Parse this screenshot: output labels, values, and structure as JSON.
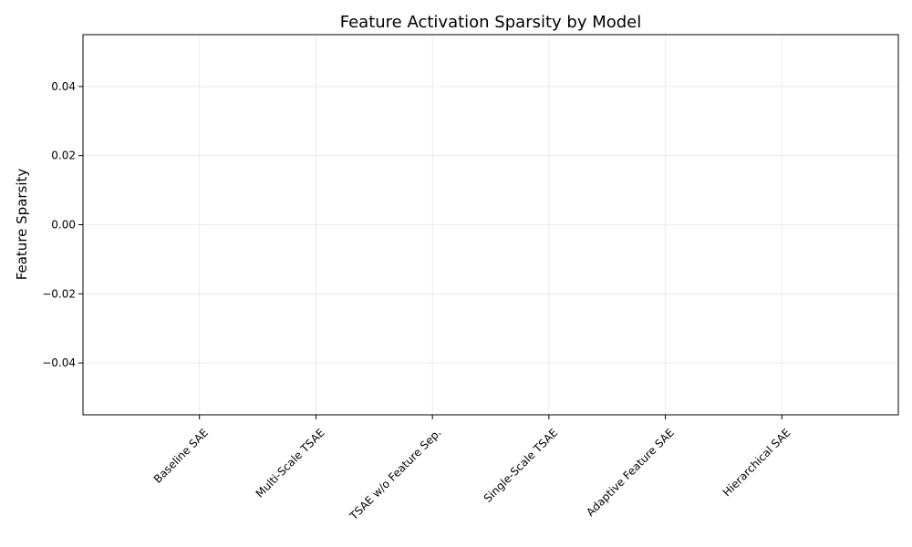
{
  "chart_data": {
    "type": "bar",
    "title": "Feature Activation Sparsity by Model",
    "xlabel": "",
    "ylabel": "Feature Sparsity",
    "categories": [
      "Baseline SAE",
      "Multi-Scale TSAE",
      "TSAE w/o Feature Sep.",
      "Single-Scale TSAE",
      "Adaptive Feature SAE",
      "Hierarchical SAE"
    ],
    "values": [
      0,
      0,
      0,
      0,
      0,
      0
    ],
    "ylim": [
      -0.055,
      0.055
    ],
    "yticks": [
      -0.04,
      -0.02,
      0.0,
      0.02,
      0.04
    ],
    "ytick_labels": [
      "−0.04",
      "−0.02",
      "0.00",
      "0.02",
      "0.04"
    ],
    "grid": true,
    "bar_color": "#1f77b4"
  }
}
